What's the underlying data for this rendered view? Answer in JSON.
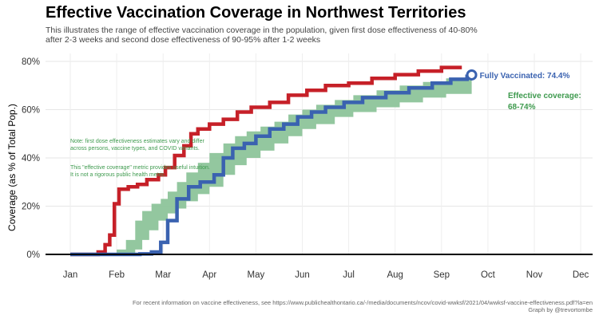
{
  "header": {
    "title": "Effective Vaccination Coverage in Northwest Territories",
    "subtitle": "This illustrates the range of effective vaccination coverage in the population, given first dose effectiveness of 40-80% after 2-3 weeks and second dose effectiveness of 90-95% after 1-2 weeks"
  },
  "chart_data": {
    "type": "line",
    "ylabel": "Coverage (as % of Total Pop.)",
    "x_ticks": [
      "Jan",
      "Feb",
      "Mar",
      "Apr",
      "May",
      "Jun",
      "Jul",
      "Aug",
      "Sep",
      "Oct",
      "Nov",
      "Dec"
    ],
    "y_ticks": [
      "0%",
      "20%",
      "40%",
      "60%",
      "80%"
    ],
    "ylim": [
      0,
      80
    ],
    "xlim_months": [
      0.5,
      11.5
    ],
    "grid": true,
    "colors": {
      "first_dose": "#c62028",
      "fully": "#3a62b0",
      "band": "#8dc49a",
      "band_text": "#3e9a4e"
    },
    "series": [
      {
        "key": "first_dose",
        "points": [
          [
            1,
            0
          ],
          [
            1.5,
            0
          ],
          [
            1.6,
            1
          ],
          [
            1.75,
            4
          ],
          [
            1.85,
            8
          ],
          [
            1.95,
            21
          ],
          [
            2.05,
            27
          ],
          [
            2.25,
            28
          ],
          [
            2.45,
            29
          ],
          [
            2.65,
            31
          ],
          [
            2.9,
            33
          ],
          [
            3.05,
            36
          ],
          [
            3.25,
            41
          ],
          [
            3.45,
            45
          ],
          [
            3.6,
            50
          ],
          [
            3.75,
            52
          ],
          [
            4,
            54
          ],
          [
            4.3,
            56
          ],
          [
            4.6,
            59
          ],
          [
            4.9,
            61
          ],
          [
            5.3,
            63
          ],
          [
            5.7,
            66
          ],
          [
            6.1,
            68
          ],
          [
            6.5,
            70
          ],
          [
            7,
            71
          ],
          [
            7.5,
            73
          ],
          [
            8,
            74.5
          ],
          [
            8.5,
            76
          ],
          [
            9,
            77.5
          ],
          [
            9.4,
            78.2
          ]
        ]
      },
      {
        "key": "fully",
        "name": "Fully Vaccinated: 74.4%",
        "points": [
          [
            1,
            0
          ],
          [
            1.5,
            0
          ],
          [
            1.8,
            0
          ],
          [
            2.2,
            0
          ],
          [
            2.5,
            0.2
          ],
          [
            2.75,
            1
          ],
          [
            2.95,
            5
          ],
          [
            3.1,
            14
          ],
          [
            3.3,
            23
          ],
          [
            3.55,
            28
          ],
          [
            3.8,
            30
          ],
          [
            4.1,
            33
          ],
          [
            4.3,
            40
          ],
          [
            4.5,
            44
          ],
          [
            4.75,
            46
          ],
          [
            5,
            49
          ],
          [
            5.3,
            52
          ],
          [
            5.6,
            54
          ],
          [
            5.9,
            57
          ],
          [
            6.2,
            59
          ],
          [
            6.5,
            61
          ],
          [
            6.9,
            63
          ],
          [
            7.3,
            65
          ],
          [
            7.8,
            67
          ],
          [
            8.3,
            69
          ],
          [
            8.8,
            71
          ],
          [
            9.2,
            72.6
          ],
          [
            9.55,
            73.8
          ],
          [
            9.65,
            74.4
          ]
        ]
      }
    ],
    "band": {
      "key": "effective",
      "name": "Effective coverage:",
      "range_label": "68-74%",
      "lower": [
        [
          2.0,
          0
        ],
        [
          2.2,
          0.5
        ],
        [
          2.4,
          2
        ],
        [
          2.55,
          6
        ],
        [
          2.7,
          10
        ],
        [
          2.9,
          14
        ],
        [
          3.1,
          17
        ],
        [
          3.3,
          19
        ],
        [
          3.5,
          22
        ],
        [
          3.75,
          25
        ],
        [
          4,
          28
        ],
        [
          4.3,
          33
        ],
        [
          4.55,
          37
        ],
        [
          4.8,
          40
        ],
        [
          5.1,
          43
        ],
        [
          5.4,
          46
        ],
        [
          5.7,
          49
        ],
        [
          6,
          52
        ],
        [
          6.3,
          54
        ],
        [
          6.7,
          57
        ],
        [
          7.1,
          59
        ],
        [
          7.6,
          61
        ],
        [
          8.1,
          63
        ],
        [
          8.6,
          65
        ],
        [
          9.1,
          66.5
        ],
        [
          9.65,
          68
        ]
      ],
      "upper": [
        [
          2.0,
          2
        ],
        [
          2.2,
          6
        ],
        [
          2.4,
          14
        ],
        [
          2.55,
          18
        ],
        [
          2.75,
          21
        ],
        [
          2.95,
          23
        ],
        [
          3.1,
          26
        ],
        [
          3.3,
          30
        ],
        [
          3.5,
          34
        ],
        [
          3.75,
          38
        ],
        [
          4,
          42
        ],
        [
          4.3,
          46
        ],
        [
          4.55,
          49
        ],
        [
          4.8,
          51
        ],
        [
          5.1,
          53
        ],
        [
          5.4,
          55
        ],
        [
          5.7,
          58
        ],
        [
          6,
          60
        ],
        [
          6.3,
          62
        ],
        [
          6.7,
          64
        ],
        [
          7.1,
          66
        ],
        [
          7.6,
          68
        ],
        [
          8.1,
          70
        ],
        [
          8.6,
          71.5
        ],
        [
          9.1,
          73
        ],
        [
          9.65,
          74
        ]
      ]
    },
    "annotations": {
      "note1_line1": "Note: first dose effectiveness estimates vary and differ",
      "note1_line2": "across persons, vaccine types, and COVID variants.",
      "note2_line1": "This \"effective coverage\" metric provides useful intuition.",
      "note2_line2": "It is not a rigorous public health metric."
    }
  },
  "footer": {
    "source": "For recent information on vaccine effectiveness, see https://www.publichealthontario.ca/-/media/documents/ncov/covid-wwksf/2021/04/wwksf-vaccine-effectiveness.pdf?la=en",
    "credit": "Graph by @trevortombe"
  }
}
